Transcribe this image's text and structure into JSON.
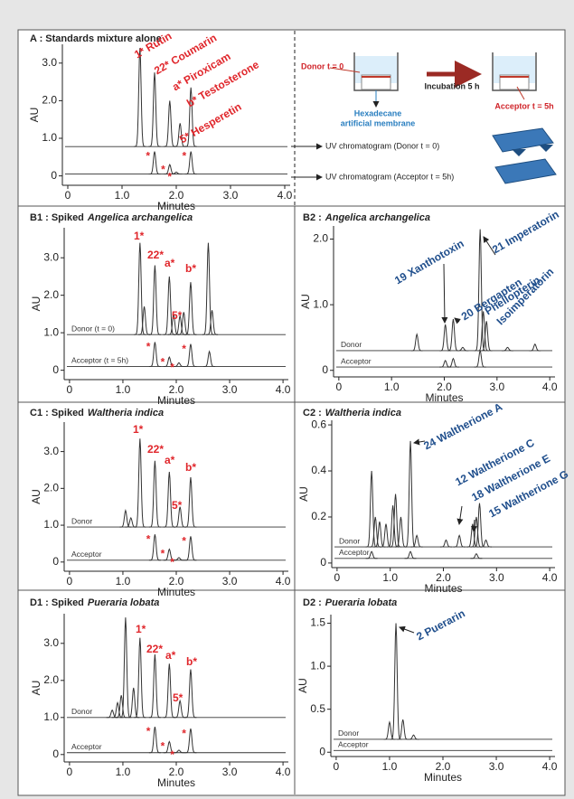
{
  "chart_data": [
    {
      "type": "line",
      "title": "A : Standards mixture alone",
      "x_label": "Minutes",
      "y_label": "AU",
      "xlim": [
        -0.1,
        4.1
      ],
      "ylim": [
        -0.25,
        3.5
      ],
      "xticks": [
        0,
        {
          "value": 1,
          "label": "1.0"
        },
        {
          "value": 2,
          "label": "2.0"
        },
        {
          "value": 3,
          "label": "3.0"
        },
        {
          "value": 4,
          "label": "4.0"
        }
      ],
      "yticks": [
        0,
        {
          "value": 1,
          "label": "1.0"
        },
        {
          "value": 2,
          "label": "2.0"
        },
        {
          "value": 3,
          "label": "3.0"
        }
      ],
      "annotation_color": "#e0262b",
      "annotations": [
        "1* Rutin",
        "22* Coumarin",
        "a* Piroxicam",
        "b* Testosterone",
        "5* Hesperetin"
      ],
      "series": [
        {
          "color": "#333333",
          "baseline": 0.78,
          "peaks": [
            {
              "x": 1.33,
              "y": 3.4
            },
            {
              "x": 1.6,
              "y": 2.75
            },
            {
              "x": 1.88,
              "y": 2.0
            },
            {
              "x": 2.07,
              "y": 1.4
            },
            {
              "x": 2.27,
              "y": 2.35
            }
          ]
        },
        {
          "color": "#333333",
          "baseline": 0.05,
          "peaks": [
            {
              "x": 1.6,
              "y": 0.65,
              "label": "*"
            },
            {
              "x": 1.88,
              "y": 0.3,
              "label": "*"
            },
            {
              "x": 2.0,
              "y": 0.1,
              "label": "*"
            },
            {
              "x": 2.27,
              "y": 0.65,
              "label": "*"
            }
          ]
        }
      ],
      "trace_notes": [
        "UV chromatogram (Donor t = 0)",
        "UV chromatogram (Acceptor t = 5h)"
      ],
      "diagram": {
        "donor": "Donor t = 0",
        "membrane": [
          "Hexadecane",
          "artificial membrane"
        ],
        "incubation": "Incubation 5 h",
        "acceptor": "Acceptor  t = 5h"
      }
    },
    {
      "type": "line",
      "title": "B1 : Spiked",
      "title_italic": "Angelica archangelica",
      "x_label": "Minutes",
      "y_label": "AU",
      "xlim": [
        -0.1,
        4.1
      ],
      "ylim": [
        -0.25,
        3.8
      ],
      "xticks": [
        0,
        {
          "value": 1,
          "label": "1.0"
        },
        {
          "value": 2,
          "label": "2.0"
        },
        {
          "value": 3,
          "label": "3.0"
        },
        {
          "value": 4,
          "label": "4.0"
        }
      ],
      "yticks": [
        0,
        {
          "value": 1,
          "label": "1.0"
        },
        {
          "value": 2,
          "label": "2.0"
        },
        {
          "value": 3,
          "label": "3.0"
        }
      ],
      "annotation_color": "#e0262b",
      "annotations": [
        "1*",
        "22*",
        "a*",
        "b*",
        "5*"
      ],
      "series": [
        {
          "name": "Donor (t = 0)",
          "color": "#333333",
          "baseline": 0.95,
          "peaks": [
            {
              "x": 1.32,
              "y": 3.4
            },
            {
              "x": 1.4,
              "y": 1.7
            },
            {
              "x": 1.6,
              "y": 2.8
            },
            {
              "x": 1.87,
              "y": 2.5
            },
            {
              "x": 1.95,
              "y": 1.5
            },
            {
              "x": 2.07,
              "y": 1.45
            },
            {
              "x": 2.14,
              "y": 1.55
            },
            {
              "x": 2.27,
              "y": 2.35
            },
            {
              "x": 2.6,
              "y": 3.4
            },
            {
              "x": 2.67,
              "y": 1.6
            }
          ]
        },
        {
          "name": "Acceptor (t = 5h)",
          "color": "#333333",
          "baseline": 0.1,
          "peaks": [
            {
              "x": 1.6,
              "y": 0.75,
              "label": "*"
            },
            {
              "x": 1.87,
              "y": 0.35,
              "label": "*"
            },
            {
              "x": 2.05,
              "y": 0.2,
              "label": "*"
            },
            {
              "x": 2.27,
              "y": 0.7,
              "label": "*"
            },
            {
              "x": 2.62,
              "y": 0.5
            }
          ]
        }
      ]
    },
    {
      "type": "line",
      "title": "B2 :",
      "title_italic": "Angelica archangelica",
      "x_label": "Minutes",
      "y_label": "AU",
      "xlim": [
        -0.1,
        4.1
      ],
      "ylim": [
        -0.1,
        2.2
      ],
      "xticks": [
        0,
        {
          "value": 1,
          "label": "1.0"
        },
        {
          "value": 2,
          "label": "2.0"
        },
        {
          "value": 3,
          "label": "3.0"
        },
        {
          "value": 4,
          "label": "4.0"
        }
      ],
      "yticks": [
        0,
        {
          "value": 1,
          "label": "1.0"
        },
        {
          "value": 2,
          "label": "2.0"
        }
      ],
      "annotation_color": "#1f4e8c",
      "annotations": [
        "19 Xanthotoxin",
        "21 Imperatorin",
        "20 Bergapten",
        "Phellopterin",
        "Isoimperatorin"
      ],
      "series": [
        {
          "name": "Donor",
          "color": "#333333",
          "baseline": 0.3,
          "peaks": [
            {
              "x": 1.48,
              "y": 0.55
            },
            {
              "x": 2.02,
              "y": 0.7
            },
            {
              "x": 2.17,
              "y": 0.78
            },
            {
              "x": 2.35,
              "y": 0.35
            },
            {
              "x": 2.68,
              "y": 2.15
            },
            {
              "x": 2.74,
              "y": 0.9
            },
            {
              "x": 2.8,
              "y": 0.75
            },
            {
              "x": 3.2,
              "y": 0.35
            },
            {
              "x": 3.72,
              "y": 0.4
            }
          ]
        },
        {
          "name": "Acceptor",
          "color": "#333333",
          "baseline": 0.05,
          "peaks": [
            {
              "x": 2.02,
              "y": 0.15
            },
            {
              "x": 2.17,
              "y": 0.18
            },
            {
              "x": 2.68,
              "y": 0.3
            }
          ]
        }
      ]
    },
    {
      "type": "line",
      "title": "C1 : Spiked",
      "title_italic": "Waltheria indica",
      "x_label": "Minutes",
      "y_label": "AU",
      "xlim": [
        -0.1,
        4.1
      ],
      "ylim": [
        -0.25,
        3.8
      ],
      "xticks": [
        0,
        {
          "value": 1,
          "label": "1.0"
        },
        {
          "value": 2,
          "label": "2.0"
        },
        {
          "value": 3,
          "label": "3.0"
        },
        {
          "value": 4,
          "label": "4.0"
        }
      ],
      "yticks": [
        0,
        {
          "value": 1,
          "label": "1.0"
        },
        {
          "value": 2,
          "label": "2.0"
        },
        {
          "value": 3,
          "label": "3.0"
        }
      ],
      "annotation_color": "#e0262b",
      "annotations": [
        "1*",
        "22*",
        "a*",
        "b*",
        "5*"
      ],
      "series": [
        {
          "name": "Donor",
          "color": "#333333",
          "baseline": 0.95,
          "peaks": [
            {
              "x": 1.05,
              "y": 1.4
            },
            {
              "x": 1.15,
              "y": 1.2
            },
            {
              "x": 1.32,
              "y": 3.35
            },
            {
              "x": 1.6,
              "y": 2.75
            },
            {
              "x": 1.87,
              "y": 2.45
            },
            {
              "x": 2.07,
              "y": 1.5
            },
            {
              "x": 2.27,
              "y": 2.3
            }
          ]
        },
        {
          "name": "Acceptor",
          "color": "#333333",
          "baseline": 0.05,
          "peaks": [
            {
              "x": 1.6,
              "y": 0.75,
              "label": "*"
            },
            {
              "x": 1.87,
              "y": 0.35,
              "label": "*"
            },
            {
              "x": 2.05,
              "y": 0.12,
              "label": "*"
            },
            {
              "x": 2.27,
              "y": 0.7,
              "label": "*"
            }
          ]
        }
      ]
    },
    {
      "type": "line",
      "title": "C2 :",
      "title_italic": "Waltheria indica",
      "x_label": "Minutes",
      "y_label": "AU",
      "xlim": [
        -0.1,
        4.1
      ],
      "ylim": [
        -0.02,
        0.62
      ],
      "xticks": [
        0,
        {
          "value": 1,
          "label": "1.0"
        },
        {
          "value": 2,
          "label": "2.0"
        },
        {
          "value": 3,
          "label": "3.0"
        },
        {
          "value": 4,
          "label": "4.0"
        }
      ],
      "yticks": [
        0,
        0.2,
        0.4,
        0.6
      ],
      "annotation_color": "#1f4e8c",
      "annotations": [
        "24 Waltherione A",
        "12 Waltherione C",
        "18 Waltherione E",
        "15 Waltherione G"
      ],
      "series": [
        {
          "name": "Donor",
          "color": "#333333",
          "baseline": 0.07,
          "peaks": [
            {
              "x": 0.65,
              "y": 0.4
            },
            {
              "x": 0.72,
              "y": 0.2
            },
            {
              "x": 0.8,
              "y": 0.18
            },
            {
              "x": 0.92,
              "y": 0.17
            },
            {
              "x": 1.05,
              "y": 0.25
            },
            {
              "x": 1.1,
              "y": 0.3
            },
            {
              "x": 1.2,
              "y": 0.2
            },
            {
              "x": 1.38,
              "y": 0.53
            },
            {
              "x": 1.5,
              "y": 0.12
            },
            {
              "x": 2.05,
              "y": 0.1
            },
            {
              "x": 2.3,
              "y": 0.12
            },
            {
              "x": 2.55,
              "y": 0.17
            },
            {
              "x": 2.62,
              "y": 0.2
            },
            {
              "x": 2.68,
              "y": 0.26
            },
            {
              "x": 2.8,
              "y": 0.1
            }
          ]
        },
        {
          "name": "Acceptor",
          "color": "#333333",
          "baseline": 0.02,
          "peaks": [
            {
              "x": 0.65,
              "y": 0.05
            },
            {
              "x": 1.38,
              "y": 0.05
            },
            {
              "x": 2.62,
              "y": 0.04
            }
          ]
        }
      ]
    },
    {
      "type": "line",
      "title": "D1 : Spiked",
      "title_italic": "Pueraria lobata",
      "x_label": "Minutes",
      "y_label": "AU",
      "xlim": [
        -0.1,
        4.1
      ],
      "ylim": [
        -0.2,
        3.8
      ],
      "xticks": [
        0,
        {
          "value": 1,
          "label": "1.0"
        },
        {
          "value": 2,
          "label": "2.0"
        },
        {
          "value": 3,
          "label": "3.0"
        },
        {
          "value": 4,
          "label": "4.0"
        }
      ],
      "yticks": [
        0,
        {
          "value": 1,
          "label": "1.0"
        },
        {
          "value": 2,
          "label": "2.0"
        },
        {
          "value": 3,
          "label": "3.0"
        }
      ],
      "annotation_color": "#e0262b",
      "annotations": [
        "1*",
        "22*",
        "a*",
        "b*",
        "5*"
      ],
      "series": [
        {
          "name": "Donor",
          "color": "#333333",
          "baseline": 1.0,
          "peaks": [
            {
              "x": 0.8,
              "y": 1.2
            },
            {
              "x": 0.9,
              "y": 1.4
            },
            {
              "x": 0.97,
              "y": 1.6
            },
            {
              "x": 1.05,
              "y": 3.7
            },
            {
              "x": 1.2,
              "y": 1.8
            },
            {
              "x": 1.32,
              "y": 3.15
            },
            {
              "x": 1.6,
              "y": 2.7
            },
            {
              "x": 1.87,
              "y": 2.45
            },
            {
              "x": 2.07,
              "y": 1.45
            },
            {
              "x": 2.27,
              "y": 2.3
            }
          ]
        },
        {
          "name": "Acceptor",
          "color": "#333333",
          "baseline": 0.05,
          "peaks": [
            {
              "x": 1.6,
              "y": 0.75,
              "label": "*"
            },
            {
              "x": 1.87,
              "y": 0.35,
              "label": "*"
            },
            {
              "x": 2.05,
              "y": 0.12,
              "label": "*"
            },
            {
              "x": 2.27,
              "y": 0.7,
              "label": "*"
            }
          ]
        }
      ]
    },
    {
      "type": "line",
      "title": "D2 :",
      "title_italic": "Pueraria lobata",
      "x_label": "Minutes",
      "y_label": "AU",
      "xlim": [
        -0.1,
        4.1
      ],
      "ylim": [
        -0.05,
        1.6
      ],
      "xticks": [
        0,
        {
          "value": 1,
          "label": "1.0"
        },
        {
          "value": 2,
          "label": "2.0"
        },
        {
          "value": 3,
          "label": "3.0"
        },
        {
          "value": 4,
          "label": "4.0"
        }
      ],
      "yticks": [
        0,
        0.5,
        {
          "value": 1,
          "label": "1.0"
        },
        1.5
      ],
      "annotation_color": "#1f4e8c",
      "annotations": [
        "2 Puerarin"
      ],
      "series": [
        {
          "name": "Donor",
          "color": "#333333",
          "baseline": 0.15,
          "peaks": [
            {
              "x": 1.0,
              "y": 0.35
            },
            {
              "x": 1.12,
              "y": 1.5
            },
            {
              "x": 1.25,
              "y": 0.38
            },
            {
              "x": 1.45,
              "y": 0.2
            }
          ]
        },
        {
          "name": "Acceptor",
          "color": "#333333",
          "baseline": 0.02,
          "peaks": []
        }
      ]
    }
  ]
}
